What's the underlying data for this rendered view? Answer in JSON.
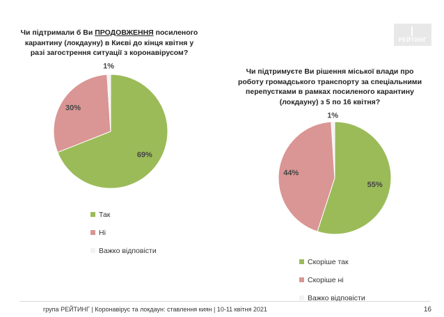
{
  "logo": {
    "text": "РЕЙТИНГ"
  },
  "chart_data": [
    {
      "type": "pie",
      "title_parts": {
        "before": "Чи підтримали б Ви ",
        "highlight": "ПРОДОВЖЕННЯ",
        "after": " посиленого карантину (локдауну) в Києві до кінця квітня у разі загострення ситуації з коронавірусом?"
      },
      "categories": [
        "Так",
        "Ні",
        "Важко відповісти"
      ],
      "values": [
        69,
        30,
        1
      ],
      "value_labels": [
        "69%",
        "30%",
        "1%"
      ],
      "colors": [
        "#9bbb59",
        "#d99694",
        "#f2f2f2"
      ],
      "legend_placement": "bottom"
    },
    {
      "type": "pie",
      "title": "Чи підтримуєте Ви рішення міської влади про роботу громадського транспорту за спеціальними перепустками в рамках посиленого карантину (локдауну) з 5 по 16 квітня?",
      "categories": [
        "Скоріше так",
        "Скоріше ні",
        "Важко відповісти"
      ],
      "values": [
        55,
        44,
        1
      ],
      "value_labels": [
        "55%",
        "44%",
        "1%"
      ],
      "colors": [
        "#9bbb59",
        "#d99694",
        "#f2f2f2"
      ],
      "legend_placement": "bottom"
    }
  ],
  "footer": {
    "text": "група РЕЙТИНГ  | Коронавірус та локдаун: ставлення киян  | 10-11 квітня 2021",
    "page": "16"
  }
}
